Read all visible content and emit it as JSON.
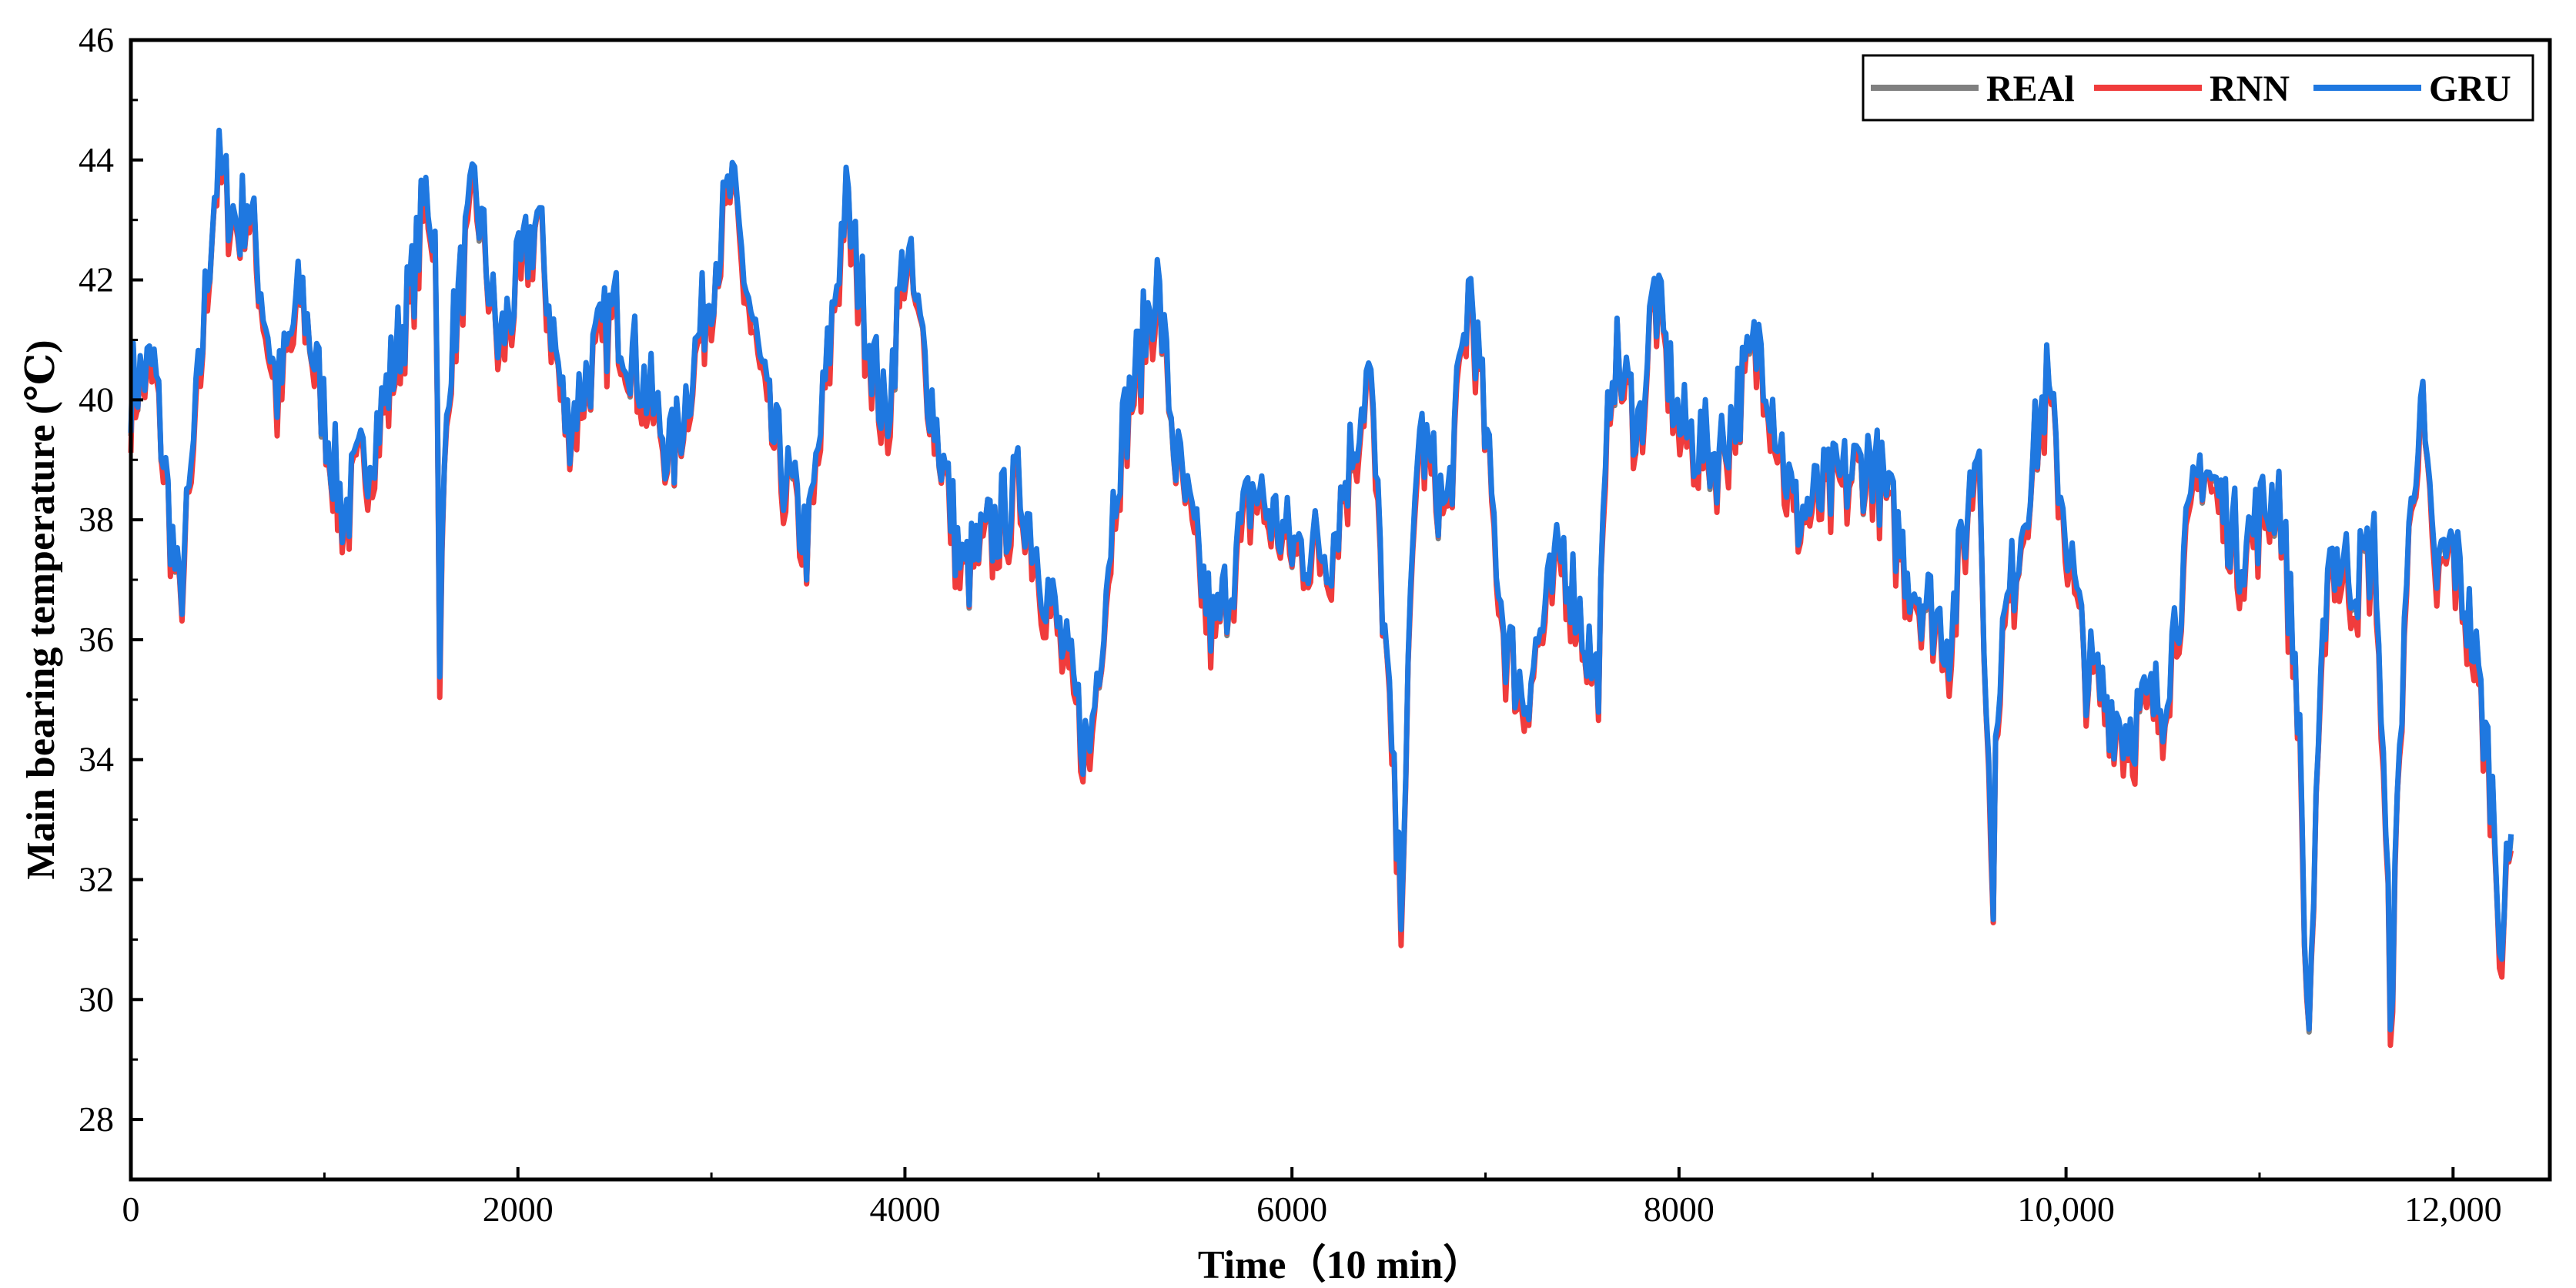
{
  "chart_data": {
    "type": "line",
    "title": "",
    "xlabel": "Time（10 min）",
    "ylabel": "Main bearing temperature (℃)",
    "xlim": [
      0,
      12500
    ],
    "ylim": [
      27,
      46
    ],
    "x_ticks": [
      0,
      2000,
      4000,
      6000,
      8000,
      10000,
      12000
    ],
    "x_tick_labels": [
      "0",
      "2000",
      "4000",
      "6000",
      "8000",
      "10,000",
      "12,000"
    ],
    "y_ticks": [
      28,
      30,
      32,
      34,
      36,
      38,
      40,
      42,
      44,
      46
    ],
    "y_tick_labels": [
      "28",
      "30",
      "32",
      "34",
      "36",
      "38",
      "40",
      "42",
      "44",
      "46"
    ],
    "grid": false,
    "legend_position": "top-right",
    "series": [
      {
        "name": "REAl",
        "color": "#808080"
      },
      {
        "name": "RNN",
        "color": "#f03c3c"
      },
      {
        "name": "GRU",
        "color": "#1f78e0"
      }
    ],
    "x": [
      0,
      120,
      250,
      300,
      430,
      450,
      560,
      600,
      760,
      880,
      1100,
      1300,
      1450,
      1530,
      1580,
      1600,
      1605,
      1640,
      1780,
      1900,
      2100,
      2250,
      2500,
      2800,
      3100,
      3300,
      3500,
      3690,
      3900,
      4000,
      4300,
      4600,
      4800,
      4950,
      5100,
      5300,
      5400,
      5600,
      5800,
      6000,
      6200,
      6400,
      6560,
      6650,
      6800,
      6920,
      7100,
      7200,
      7400,
      7580,
      7650,
      7800,
      7870,
      8000,
      8200,
      8420,
      8600,
      8800,
      9000,
      9200,
      9400,
      9550,
      9620,
      9650,
      9800,
      9900,
      10100,
      10300,
      10500,
      10700,
      10900,
      11100,
      11200,
      11250,
      11350,
      11500,
      11600,
      11680,
      11750,
      11830,
      11900,
      12000,
      12100,
      12200,
      12250,
      12300
    ],
    "values": [
      40.2,
      40.5,
      36.5,
      38.2,
      43.4,
      43.8,
      42.8,
      43.4,
      40.0,
      41.8,
      38.0,
      39.8,
      41.8,
      43.5,
      42.5,
      33.0,
      37.0,
      40.5,
      43.5,
      40.8,
      43.0,
      39.5,
      41.5,
      39.0,
      43.5,
      39.5,
      37.5,
      43.3,
      39.5,
      42.5,
      37.0,
      38.5,
      36.0,
      34.0,
      39.0,
      42.0,
      39.0,
      36.0,
      38.5,
      37.5,
      37.5,
      40.5,
      31.5,
      39.5,
      38.0,
      42.0,
      36.0,
      35.0,
      37.5,
      35.2,
      40.8,
      39.5,
      41.8,
      39.5,
      39.0,
      41.0,
      38.0,
      38.5,
      39.0,
      37.0,
      36.0,
      39.5,
      31.5,
      35.5,
      38.5,
      40.2,
      35.5,
      34.5,
      35.0,
      39.0,
      37.5,
      38.5,
      35.0,
      29.2,
      37.5,
      37.0,
      37.5,
      29.8,
      36.5,
      40.2,
      37.0,
      37.5,
      36.0,
      33.5,
      31.0,
      32.5
    ]
  }
}
